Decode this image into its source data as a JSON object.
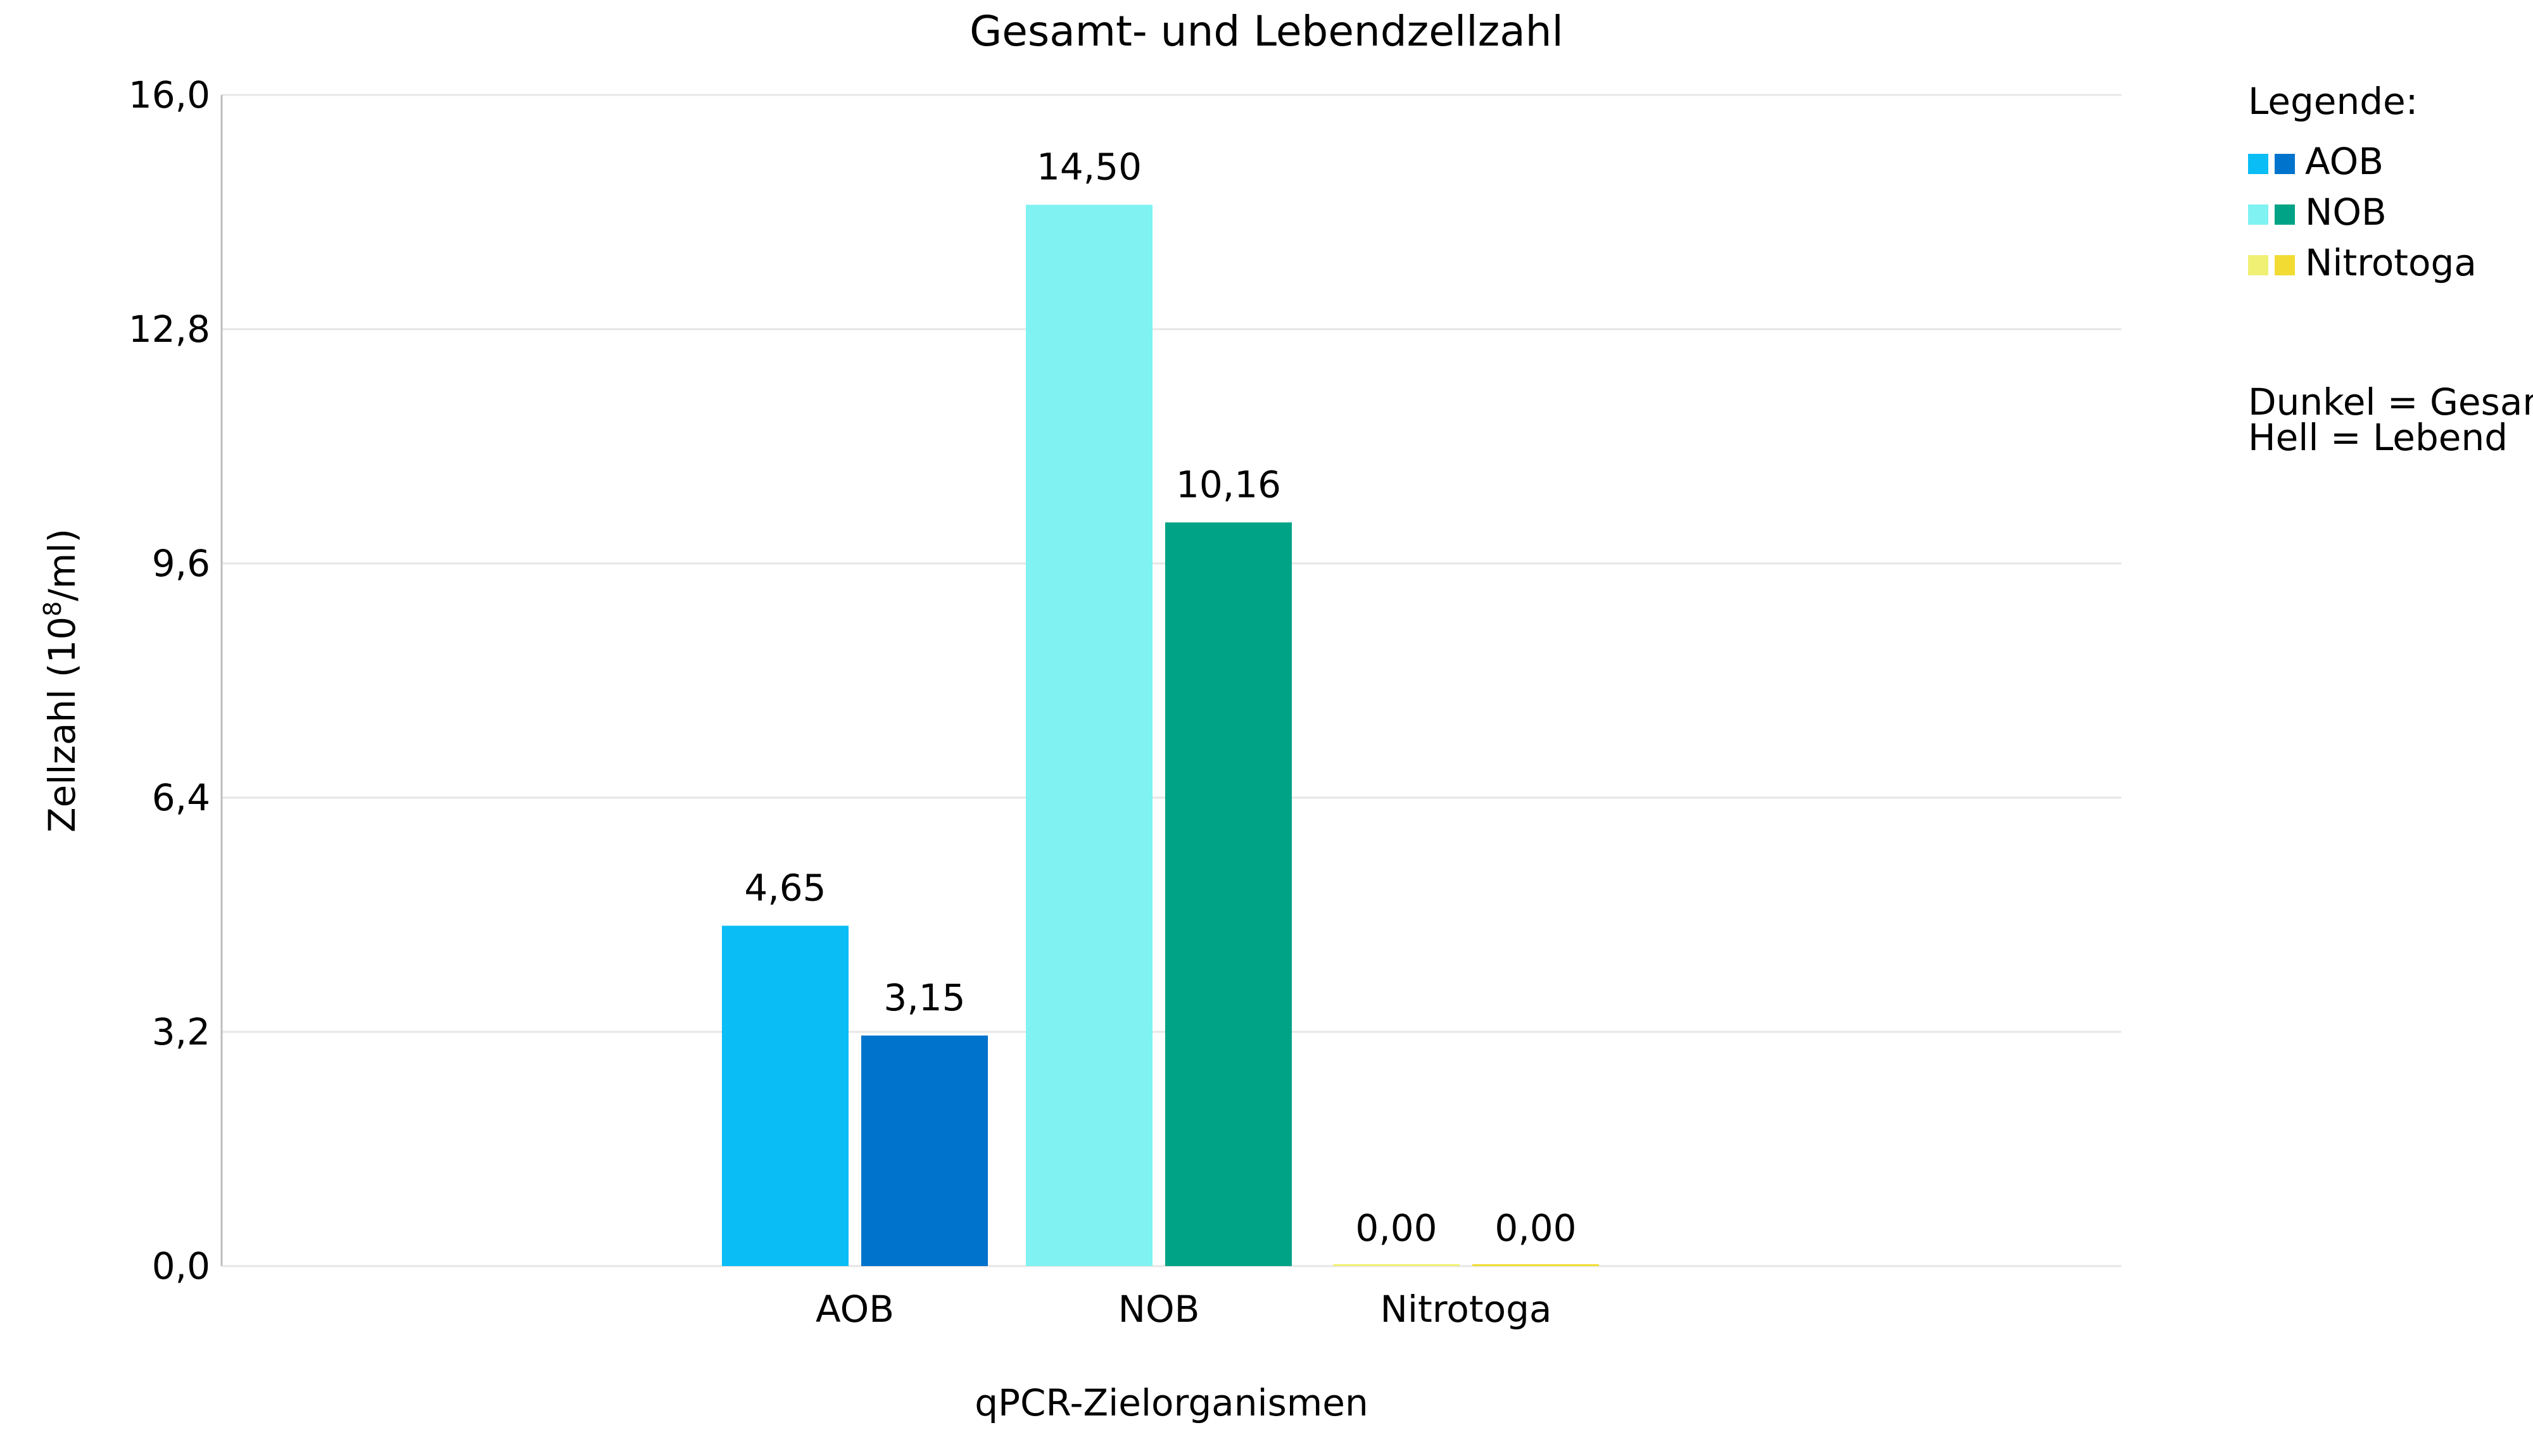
{
  "chart_data": {
    "type": "bar",
    "title": "Gesamt- und Lebendzellzahl",
    "xlabel": "qPCR-Zielorganismen",
    "ylabel": {
      "prefix": "Zellzahl (10",
      "superscript": "8",
      "suffix": "/ml)"
    },
    "ylim": [
      0,
      16
    ],
    "yticks": [
      0,
      3.2,
      6.4,
      9.6,
      12.8,
      16
    ],
    "ytick_labels": [
      "0,0",
      "3,2",
      "6,4",
      "9,6",
      "12,8",
      "16,0"
    ],
    "grid": true,
    "categories": [
      "AOB",
      "NOB",
      "Nitrotoga"
    ],
    "series": [
      {
        "name": "Hell",
        "values": [
          4.65,
          14.5,
          0.0
        ],
        "value_labels": [
          "4,65",
          "14,50",
          "0,00"
        ],
        "colors": [
          "#0ABDF5",
          "#80F2F2",
          "#F0F075"
        ]
      },
      {
        "name": "Dunkel",
        "values": [
          3.15,
          10.16,
          0.0
        ],
        "value_labels": [
          "3,15",
          "10,16",
          "0,00"
        ],
        "colors": [
          "#0073CC",
          "#00A385",
          "#F2DC33"
        ]
      }
    ],
    "legend": {
      "position": "right",
      "title": "Legende:",
      "entries": [
        {
          "label": "AOB",
          "light": "#0ABDF5",
          "dark": "#0073CC"
        },
        {
          "label": "NOB",
          "light": "#80F2F2",
          "dark": "#00A385"
        },
        {
          "label": "Nitrotoga",
          "light": "#F0F075",
          "dark": "#F2DC33"
        }
      ],
      "notes": [
        "Dunkel = Gesamt",
        "Hell = Lebend"
      ]
    }
  }
}
